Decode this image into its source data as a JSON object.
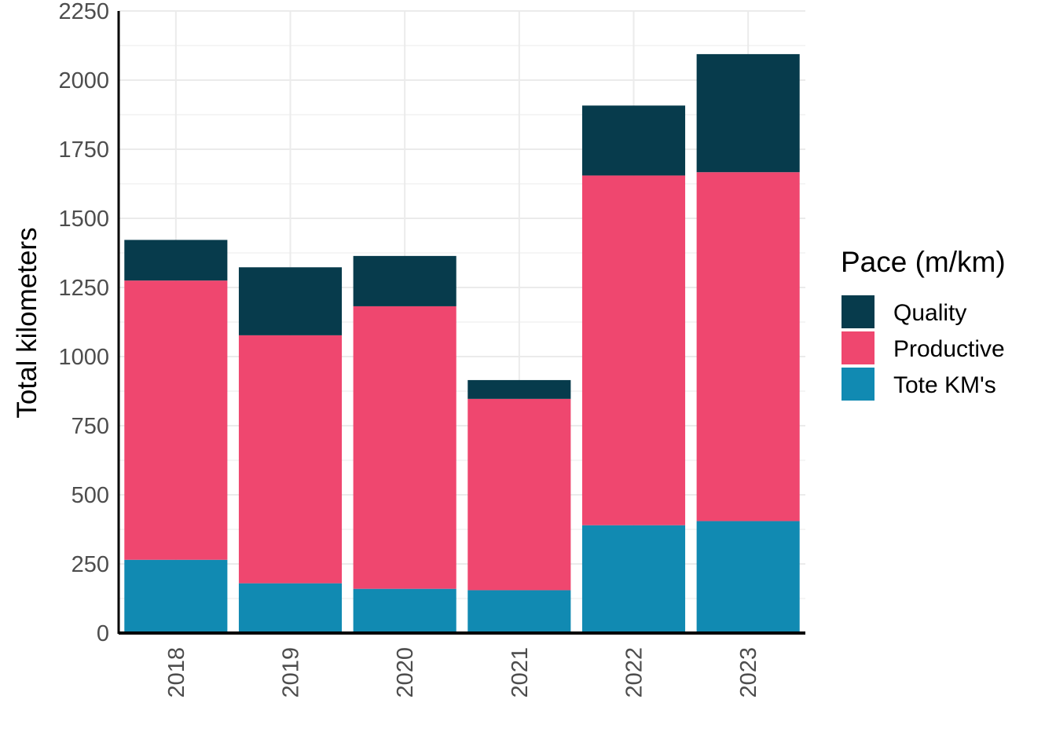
{
  "chart_data": {
    "type": "bar",
    "stacked": true,
    "categories": [
      "2018",
      "2019",
      "2020",
      "2021",
      "2022",
      "2023"
    ],
    "series": [
      {
        "name": "Tote KM's",
        "color": "#118ab2",
        "values": [
          265,
          180,
          160,
          155,
          390,
          405
        ]
      },
      {
        "name": "Productive",
        "color": "#ef476f",
        "values": [
          1010,
          897,
          1022,
          692,
          1265,
          1262
        ]
      },
      {
        "name": "Quality",
        "color": "#073b4c",
        "values": [
          147,
          246,
          182,
          68,
          253,
          427
        ]
      }
    ],
    "ylabel": "Total kilometers",
    "xlabel": "",
    "ylim": [
      0,
      2250
    ],
    "yticks": [
      "0",
      "250",
      "500",
      "750",
      "1000",
      "1250",
      "1500",
      "1750",
      "2000",
      "2250"
    ],
    "legend": {
      "title": "Pace (m/km)",
      "entries": [
        "Quality",
        "Productive",
        "Tote KM's"
      ],
      "position": "right"
    },
    "grid": true
  }
}
